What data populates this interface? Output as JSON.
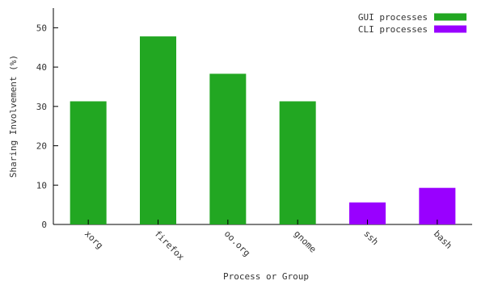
{
  "chart_data": {
    "type": "bar",
    "categories": [
      "xorg",
      "firefox",
      "oo.org",
      "gnome",
      "ssh",
      "bash"
    ],
    "series": [
      {
        "name": "GUI processes",
        "color": "#22a722",
        "values": [
          31.3,
          47.8,
          38.3,
          31.3,
          null,
          null
        ]
      },
      {
        "name": "CLI processes",
        "color": "#9900ff",
        "values": [
          null,
          null,
          null,
          null,
          5.6,
          9.3
        ]
      }
    ],
    "title": "",
    "xlabel": "Process or Group",
    "ylabel": "Sharing Involvement (%)",
    "ylim": [
      0,
      55
    ],
    "yticks": [
      0,
      10,
      20,
      30,
      40,
      50
    ],
    "grid": false,
    "legend_position": "top-right",
    "tick_label_rotation": "angled"
  }
}
